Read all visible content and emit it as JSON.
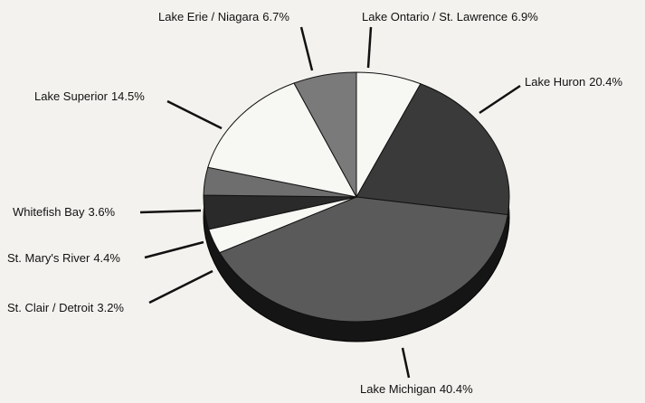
{
  "chart_data": {
    "type": "pie",
    "categories": [
      "Lake Ontario / St. Lawrence",
      "Lake Huron",
      "Lake Michigan",
      "St. Clair / Detroit",
      "St. Mary's River",
      "Whitefish Bay",
      "Lake Superior",
      "Lake Erie / Niagara"
    ],
    "values": [
      6.9,
      20.4,
      40.4,
      3.2,
      4.4,
      3.6,
      14.5,
      6.7
    ],
    "value_labels": [
      "6.9%",
      "20.4%",
      "40.4%",
      "3.2%",
      "4.4%",
      "3.6%",
      "14.5%",
      "6.7%"
    ],
    "colors": [
      "#f7f7f4",
      "#3a3a3a",
      "#5a5a5a",
      "#f7f7f4",
      "#2a2a2a",
      "#6e6e6e",
      "#f7f7f4",
      "#7a7a7a"
    ]
  }
}
